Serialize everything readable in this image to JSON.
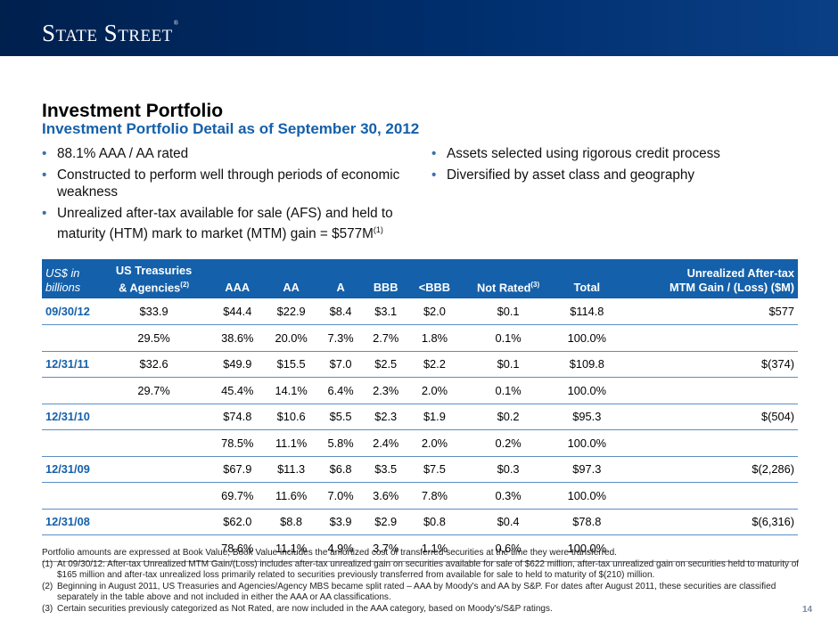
{
  "header": {
    "logo_text": "State Street",
    "logo_mark": "®"
  },
  "title": "Investment Portfolio",
  "subtitle": "Investment Portfolio Detail as of September 30, 2012",
  "bullets_left": [
    "88.1% AAA / AA rated",
    "Constructed to perform well through periods of economic weakness",
    "Unrealized after-tax available for sale (AFS) and held to maturity (HTM) mark to market (MTM) gain = $577M"
  ],
  "bullet_left_3_note": "(1)",
  "bullets_right": [
    "Assets selected using rigorous credit process",
    "Diversified by asset class and geography"
  ],
  "table": {
    "headers": {
      "c0_line1": "US$ in",
      "c0_line2": "billions",
      "c1_line1": "US Treasuries",
      "c1_line2": "& Agencies",
      "c1_note": "(2)",
      "c2": "AAA",
      "c3": "AA",
      "c4": "A",
      "c5": "BBB",
      "c6": "<BBB",
      "c7": "Not Rated",
      "c7_note": "(3)",
      "c8": "Total",
      "c9_line1": "Unrealized After-tax",
      "c9_line2": "MTM Gain / (Loss) ($M)"
    },
    "rows": [
      [
        "09/30/12",
        "$33.9",
        "$44.4",
        "$22.9",
        "$8.4",
        "$3.1",
        "$2.0",
        "$0.1",
        "$114.8",
        "$577"
      ],
      [
        "",
        "29.5%",
        "38.6%",
        "20.0%",
        "7.3%",
        "2.7%",
        "1.8%",
        "0.1%",
        "100.0%",
        ""
      ],
      [
        "12/31/11",
        "$32.6",
        "$49.9",
        "$15.5",
        "$7.0",
        "$2.5",
        "$2.2",
        "$0.1",
        "$109.8",
        "$(374)"
      ],
      [
        "",
        "29.7%",
        "45.4%",
        "14.1%",
        "6.4%",
        "2.3%",
        "2.0%",
        "0.1%",
        "100.0%",
        ""
      ],
      [
        "12/31/10",
        "",
        "$74.8",
        "$10.6",
        "$5.5",
        "$2.3",
        "$1.9",
        "$0.2",
        "$95.3",
        "$(504)"
      ],
      [
        "",
        "",
        "78.5%",
        "11.1%",
        "5.8%",
        "2.4%",
        "2.0%",
        "0.2%",
        "100.0%",
        ""
      ],
      [
        "12/31/09",
        "",
        "$67.9",
        "$11.3",
        "$6.8",
        "$3.5",
        "$7.5",
        "$0.3",
        "$97.3",
        "$(2,286)"
      ],
      [
        "",
        "",
        "69.7%",
        "11.6%",
        "7.0%",
        "3.6%",
        "7.8%",
        "0.3%",
        "100.0%",
        ""
      ],
      [
        "12/31/08",
        "",
        "$62.0",
        "$8.8",
        "$3.9",
        "$2.9",
        "$0.8",
        "$0.4",
        "$78.8",
        "$(6,316)"
      ],
      [
        "",
        "",
        "78.6%",
        "11.1%",
        "4.9%",
        "3.7%",
        "1.1%",
        "0.6%",
        "100.0%",
        ""
      ]
    ]
  },
  "footnotes": {
    "intro": "Portfolio amounts are expressed at Book Value; Book Value includes the amortized cost of transferred securities at the time they were transferred.",
    "items": [
      {
        "num": "(1)",
        "text": "At 09/30/12: After-tax Unrealized MTM Gain/(Loss) includes after-tax unrealized gain on securities available for sale of $622 million, after-tax unrealized gain on securities held to maturity of $165 million and after-tax unrealized loss primarily related to securities previously transferred from available for sale to held to maturity of $(210) million."
      },
      {
        "num": "(2)",
        "text": "Beginning in August 2011, US Treasuries and Agencies/Agency MBS became split rated – AAA by Moody's and AA by S&P.  For dates after August 2011, these securities are classified separately in the table above and not included in either the AAA or AA classifications."
      },
      {
        "num": "(3)",
        "text": "Certain securities previously categorized as Not Rated, are now included in the AAA category, based on Moody's/S&P ratings."
      }
    ]
  },
  "page_number": "14",
  "colors": {
    "brand_navy": "#002e6d",
    "accent_blue": "#1460aa"
  }
}
